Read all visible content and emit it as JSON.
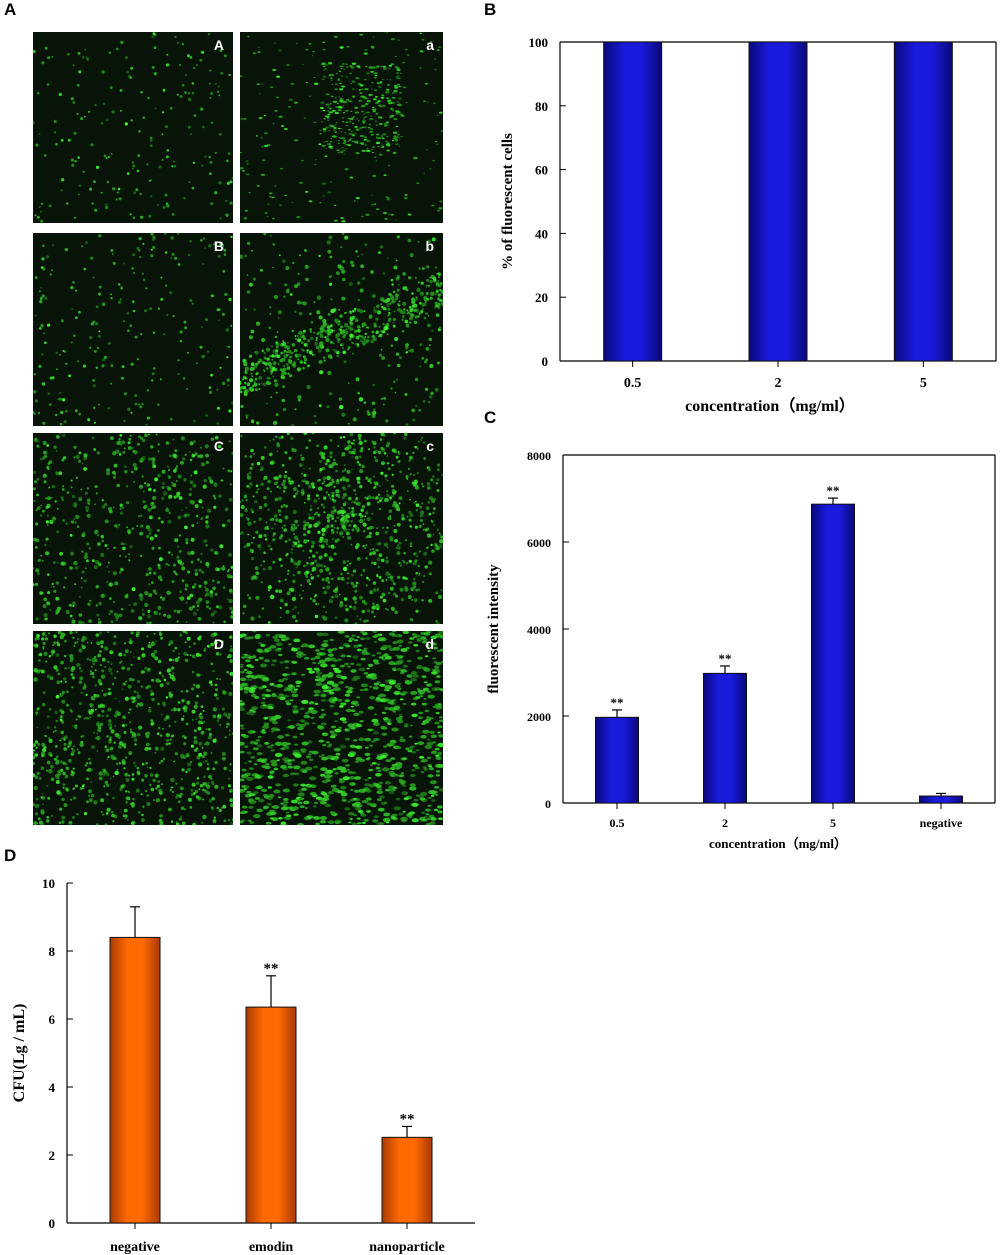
{
  "panels": {
    "A": "A",
    "B": "B",
    "C": "C",
    "D": "D"
  },
  "micrographs": [
    {
      "label": "A",
      "density": 0.15,
      "style": "sparse"
    },
    {
      "label": "a",
      "density": 0.45,
      "style": "rods"
    },
    {
      "label": "B",
      "density": 0.18,
      "style": "sparse"
    },
    {
      "label": "b",
      "density": 0.6,
      "style": "clusters"
    },
    {
      "label": "C",
      "density": 0.5,
      "style": "speckle"
    },
    {
      "label": "c",
      "density": 0.85,
      "style": "blob"
    },
    {
      "label": "D",
      "density": 0.75,
      "style": "dense"
    },
    {
      "label": "d",
      "density": 0.95,
      "style": "large"
    }
  ],
  "chart_data": [
    {
      "id": "B",
      "type": "bar",
      "categories": [
        "0.5",
        "2",
        "5"
      ],
      "values": [
        100,
        100,
        100
      ],
      "xlabel": "concentration（mg/ml）",
      "ylabel": "% of fluorescent cells",
      "ylim": [
        0,
        100
      ],
      "yticks": [
        0,
        20,
        40,
        60,
        80,
        100
      ],
      "color": "#1a1adc"
    },
    {
      "id": "C",
      "type": "bar",
      "categories": [
        "0.5",
        "2",
        "5",
        "negative"
      ],
      "values": [
        1970,
        2980,
        6870,
        160
      ],
      "errors": [
        170,
        170,
        140,
        60
      ],
      "annotations": [
        "**",
        "**",
        "**",
        ""
      ],
      "xlabel": "concentration（mg/ml）",
      "ylabel": "fluorescent intensity",
      "ylim": [
        0,
        8000
      ],
      "yticks": [
        0,
        2000,
        4000,
        6000,
        8000
      ],
      "color": "#1a1adc"
    },
    {
      "id": "D",
      "type": "bar",
      "categories": [
        "negative",
        "emodin",
        "nanoparticle"
      ],
      "values": [
        8.4,
        6.35,
        2.52
      ],
      "errors": [
        0.9,
        0.92,
        0.32
      ],
      "annotations": [
        "",
        "**",
        "**"
      ],
      "xlabel": "",
      "ylabel": "CFU(Lg / mL)",
      "ylim": [
        0,
        10
      ],
      "yticks": [
        0,
        2,
        4,
        6,
        8,
        10
      ],
      "color": "#ff6a00"
    }
  ]
}
